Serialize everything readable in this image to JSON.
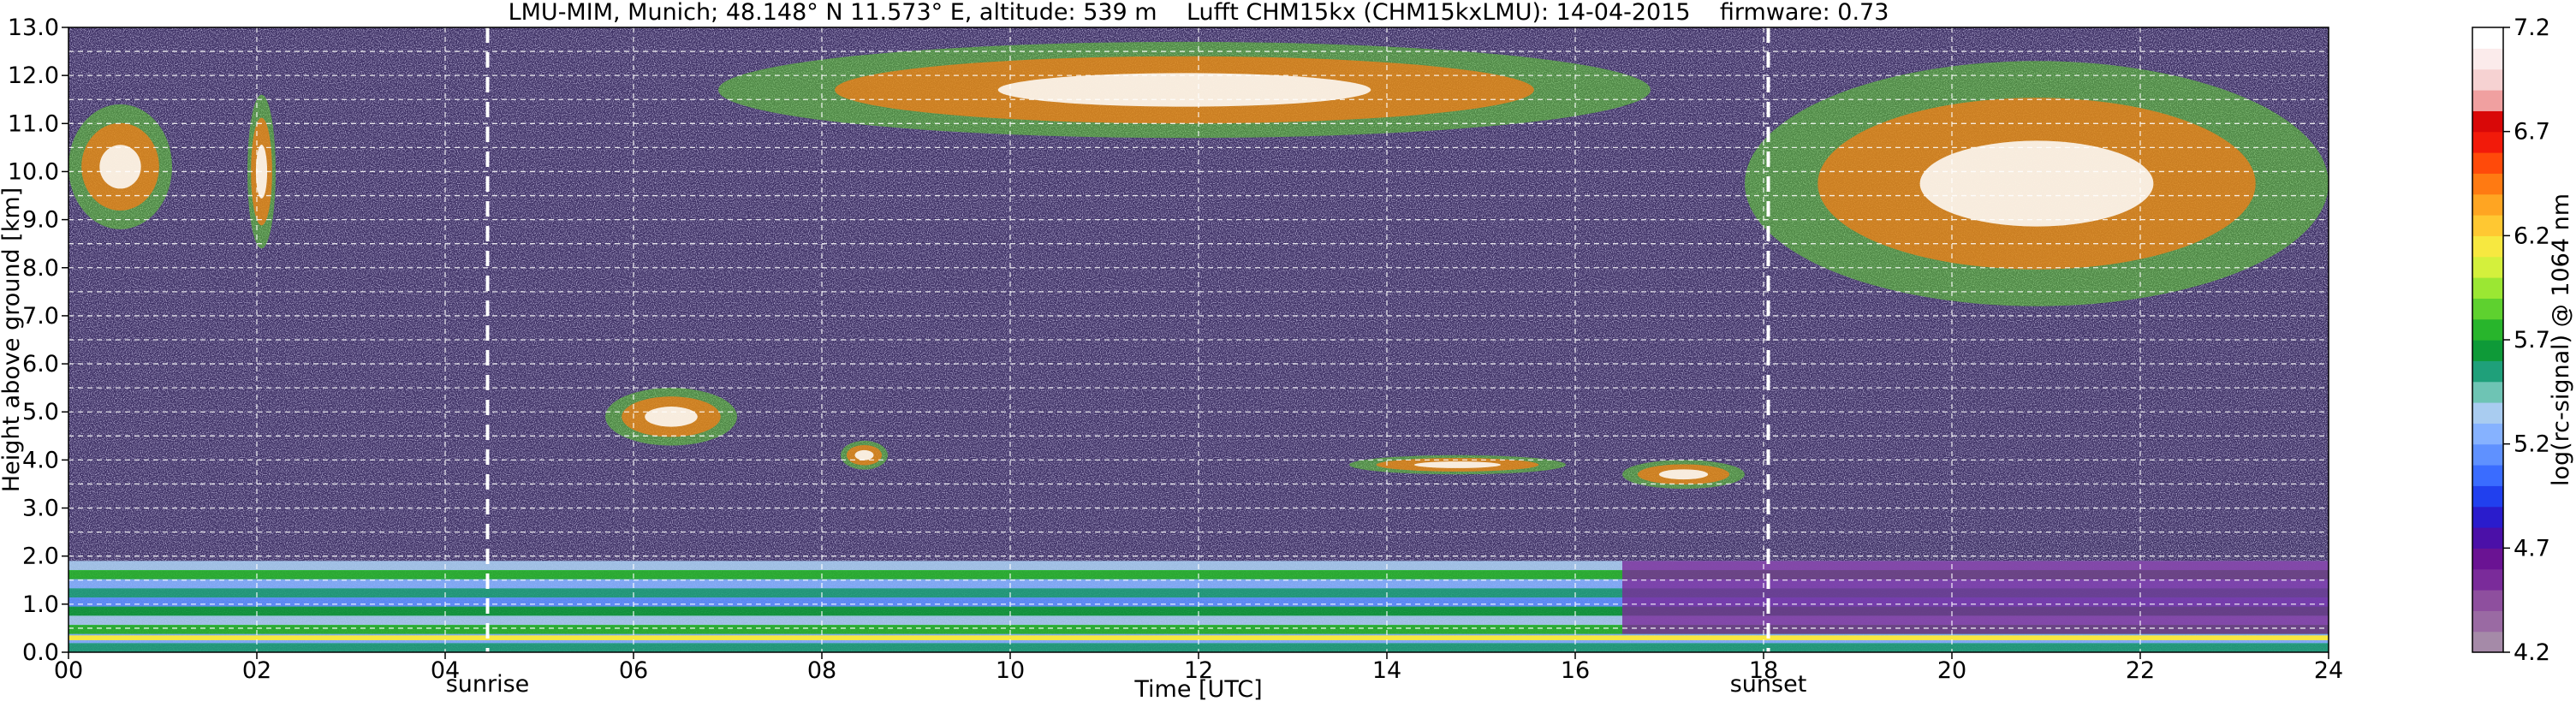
{
  "chart_data": {
    "type": "heatmap",
    "title": "LMU-MIM, Munich; 48.148° N 11.573° E, altitude: 539 m    Lufft CHM15kx (CHM15kxLMU): 14-04-2015    firmware: 0.73",
    "xlabel": "Time [UTC]",
    "ylabel": "Height above ground [km]",
    "xlim": [
      0,
      24
    ],
    "ylim": [
      0,
      13
    ],
    "xticks": [
      "00",
      "02",
      "04",
      "06",
      "08",
      "10",
      "12",
      "14",
      "16",
      "18",
      "20",
      "22",
      "24"
    ],
    "yticks": [
      "0.0",
      "1.0",
      "2.0",
      "3.0",
      "4.0",
      "5.0",
      "6.0",
      "7.0",
      "8.0",
      "9.0",
      "10.0",
      "11.0",
      "12.0",
      "13.0"
    ],
    "grid": true,
    "annotations": [
      {
        "label": "sunrise",
        "time": 4.45
      },
      {
        "label": "sunset",
        "time": 18.05
      }
    ],
    "colorbar": {
      "label": "log(rc-signal) @ 1064 nm",
      "range": [
        4.2,
        7.2
      ],
      "ticks": [
        "4.2",
        "4.7",
        "5.2",
        "5.7",
        "6.2",
        "6.7",
        "7.2"
      ],
      "colors": [
        "#a58aa8",
        "#9a6aa3",
        "#8e4f9e",
        "#7a2b9a",
        "#6a1393",
        "#4b10a8",
        "#2a1ccc",
        "#2140ee",
        "#3a6cff",
        "#5f91ff",
        "#86b2ff",
        "#a9ccf0",
        "#6ec4b4",
        "#1fa07a",
        "#0e9a38",
        "#28b52c",
        "#5ed12f",
        "#9be733",
        "#d4f03c",
        "#f7e840",
        "#ffc832",
        "#ffa522",
        "#ff7a12",
        "#ff4a0a",
        "#f21a0a",
        "#d90808",
        "#f0a0a0",
        "#f6d2d2",
        "#fbebeb",
        "#ffffff"
      ]
    },
    "features": [
      {
        "kind": "boundary_layer",
        "t0": 0,
        "t1": 24,
        "h0": 0,
        "h1": 1.9
      },
      {
        "kind": "cloud",
        "t0": 0.0,
        "t1": 1.1,
        "h0": 8.8,
        "h1": 11.4
      },
      {
        "kind": "cloud",
        "t0": 1.9,
        "t1": 2.2,
        "h0": 8.4,
        "h1": 11.6
      },
      {
        "kind": "cloud",
        "t0": 5.7,
        "t1": 7.1,
        "h0": 4.3,
        "h1": 5.5
      },
      {
        "kind": "cloud",
        "t0": 8.2,
        "t1": 8.7,
        "h0": 3.8,
        "h1": 4.4
      },
      {
        "kind": "cloud",
        "t0": 13.6,
        "t1": 15.9,
        "h0": 3.7,
        "h1": 4.1
      },
      {
        "kind": "cloud",
        "t0": 16.5,
        "t1": 17.8,
        "h0": 3.4,
        "h1": 4.0
      },
      {
        "kind": "cloud",
        "t0": 6.9,
        "t1": 16.8,
        "h0": 10.7,
        "h1": 12.7
      },
      {
        "kind": "cloud",
        "t0": 17.8,
        "t1": 24.0,
        "h0": 7.2,
        "h1": 12.3
      }
    ]
  }
}
